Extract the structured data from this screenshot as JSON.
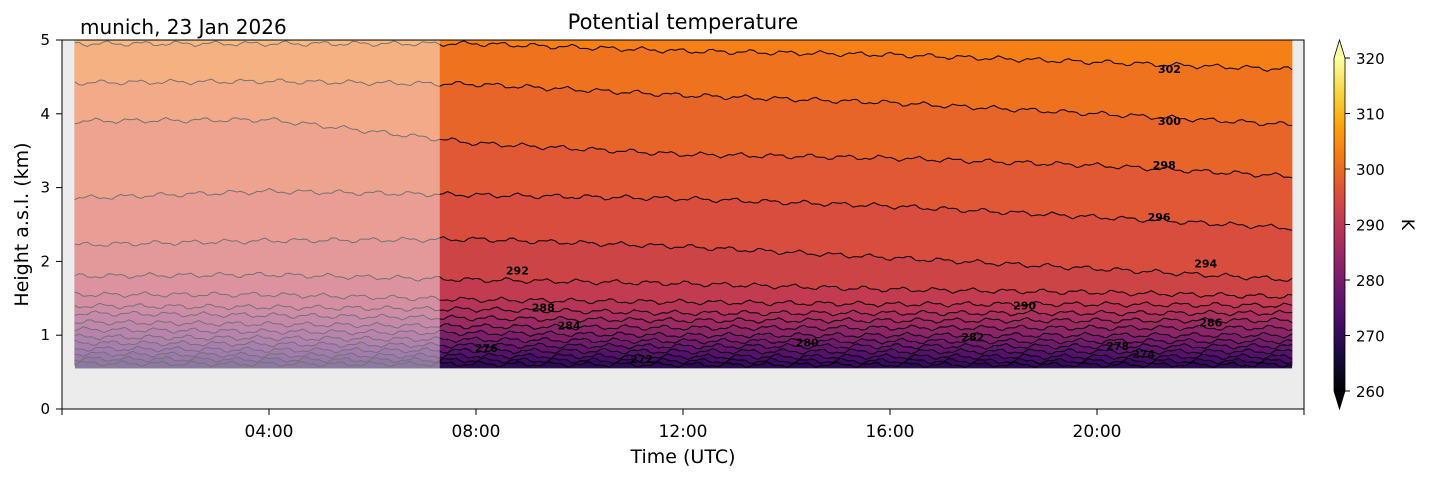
{
  "chart_data": {
    "type": "heatmap",
    "title": "Potential temperature",
    "location_label": "munich, 23 Jan 2026",
    "xlabel": "Time (UTC)",
    "ylabel": "Height a.s.l. (km)",
    "xlim_hours": [
      0,
      24
    ],
    "ylim_km": [
      0,
      5
    ],
    "x_tick_labels": [
      "04:00",
      "08:00",
      "12:00",
      "16:00",
      "20:00"
    ],
    "x_tick_hours": [
      4,
      8,
      12,
      16,
      20
    ],
    "y_ticks": [
      0,
      1,
      2,
      3,
      4,
      5
    ],
    "colorbar": {
      "label": "K",
      "min": 260,
      "max": 320,
      "ticks": [
        260,
        270,
        280,
        290,
        300,
        310,
        320
      ],
      "colormap": "inferno",
      "extend": "both"
    },
    "data_bottom_km": 0.55,
    "faded_until_hours": 7.3,
    "data_end_hours": 23.8,
    "missing_color": "#ececec",
    "contour_color": "#000000",
    "contour_label_values": [
      302,
      300,
      298,
      296,
      294,
      292,
      290,
      288,
      286,
      284,
      282,
      280,
      278,
      276,
      274,
      272
    ],
    "contour_levels": [
      {
        "theta": 302,
        "heights": [
          [
            0,
            4.95
          ],
          [
            4,
            4.95
          ],
          [
            8,
            4.95
          ],
          [
            12,
            4.85
          ],
          [
            16,
            4.8
          ],
          [
            20,
            4.7
          ],
          [
            23.8,
            4.6
          ]
        ]
      },
      {
        "theta": 300,
        "heights": [
          [
            0,
            4.42
          ],
          [
            4,
            4.44
          ],
          [
            8,
            4.4
          ],
          [
            12,
            4.25
          ],
          [
            16,
            4.15
          ],
          [
            20,
            4.0
          ],
          [
            23.8,
            3.85
          ]
        ]
      },
      {
        "theta": 298,
        "heights": [
          [
            0,
            3.9
          ],
          [
            4,
            3.92
          ],
          [
            8,
            3.6
          ],
          [
            12,
            3.45
          ],
          [
            16,
            3.4
          ],
          [
            20,
            3.3
          ],
          [
            23.8,
            3.15
          ]
        ]
      },
      {
        "theta": 296,
        "heights": [
          [
            0,
            2.85
          ],
          [
            4,
            2.95
          ],
          [
            8,
            2.9
          ],
          [
            12,
            2.85
          ],
          [
            16,
            2.75
          ],
          [
            20,
            2.6
          ],
          [
            23.8,
            2.45
          ]
        ]
      },
      {
        "theta": 294,
        "heights": [
          [
            0,
            2.22
          ],
          [
            4,
            2.28
          ],
          [
            8,
            2.3
          ],
          [
            12,
            2.2
          ],
          [
            16,
            2.05
          ],
          [
            20,
            1.9
          ],
          [
            23.8,
            1.75
          ]
        ]
      },
      {
        "theta": 292,
        "heights": [
          [
            0,
            1.8
          ],
          [
            4,
            1.82
          ],
          [
            8,
            1.75
          ],
          [
            12,
            1.7
          ],
          [
            16,
            1.62
          ],
          [
            20,
            1.58
          ],
          [
            23.8,
            1.52
          ]
        ]
      },
      {
        "theta": 290,
        "heights": [
          [
            0,
            1.55
          ],
          [
            4,
            1.55
          ],
          [
            8,
            1.48
          ],
          [
            12,
            1.45
          ],
          [
            16,
            1.42
          ],
          [
            20,
            1.42
          ],
          [
            23.8,
            1.4
          ]
        ]
      },
      {
        "theta": 288,
        "heights": [
          [
            0,
            1.4
          ],
          [
            4,
            1.38
          ],
          [
            8,
            1.35
          ],
          [
            12,
            1.3
          ],
          [
            16,
            1.3
          ],
          [
            20,
            1.3
          ],
          [
            23.8,
            1.3
          ]
        ]
      },
      {
        "theta": 286,
        "heights": [
          [
            0,
            1.3
          ],
          [
            4,
            1.27
          ],
          [
            8,
            1.23
          ],
          [
            12,
            1.2
          ],
          [
            16,
            1.2
          ],
          [
            20,
            1.2
          ],
          [
            23.8,
            1.2
          ]
        ]
      },
      {
        "theta": 284,
        "heights": [
          [
            0,
            1.18
          ],
          [
            4,
            1.15
          ],
          [
            8,
            1.12
          ],
          [
            12,
            1.1
          ],
          [
            16,
            1.1
          ],
          [
            20,
            1.1
          ],
          [
            23.8,
            1.1
          ]
        ]
      },
      {
        "theta": 282,
        "heights": [
          [
            0,
            1.08
          ],
          [
            4,
            1.05
          ],
          [
            8,
            1.03
          ],
          [
            12,
            1.0
          ],
          [
            16,
            1.0
          ],
          [
            20,
            1.0
          ],
          [
            23.8,
            1.0
          ]
        ]
      },
      {
        "theta": 280,
        "heights": [
          [
            0,
            0.98
          ],
          [
            4,
            0.96
          ],
          [
            8,
            0.94
          ],
          [
            12,
            0.92
          ],
          [
            16,
            0.92
          ],
          [
            20,
            0.92
          ],
          [
            23.8,
            0.92
          ]
        ]
      },
      {
        "theta": 278,
        "heights": [
          [
            0,
            0.9
          ],
          [
            4,
            0.88
          ],
          [
            8,
            0.86
          ],
          [
            12,
            0.85
          ],
          [
            16,
            0.85
          ],
          [
            20,
            0.85
          ],
          [
            23.8,
            0.85
          ]
        ]
      },
      {
        "theta": 276,
        "heights": [
          [
            0,
            0.82
          ],
          [
            4,
            0.8
          ],
          [
            8,
            0.79
          ],
          [
            12,
            0.78
          ],
          [
            16,
            0.78
          ],
          [
            20,
            0.78
          ],
          [
            23.8,
            0.78
          ]
        ]
      },
      {
        "theta": 274,
        "heights": [
          [
            0,
            0.75
          ],
          [
            4,
            0.73
          ],
          [
            8,
            0.72
          ],
          [
            12,
            0.71
          ],
          [
            16,
            0.71
          ],
          [
            20,
            0.71
          ],
          [
            23.8,
            0.71
          ]
        ]
      },
      {
        "theta": 272,
        "heights": [
          [
            0,
            0.68
          ],
          [
            4,
            0.67
          ],
          [
            8,
            0.66
          ],
          [
            12,
            0.65
          ],
          [
            16,
            0.65
          ],
          [
            20,
            0.65
          ],
          [
            23.8,
            0.65
          ]
        ]
      },
      {
        "theta": 270,
        "heights": [
          [
            0,
            0.62
          ],
          [
            4,
            0.61
          ],
          [
            8,
            0.61
          ],
          [
            12,
            0.6
          ],
          [
            16,
            0.6
          ],
          [
            20,
            0.6
          ],
          [
            23.8,
            0.6
          ]
        ]
      }
    ],
    "contour_labels": [
      {
        "text": "302",
        "x_hours": 21.4,
        "y_km": 4.55
      },
      {
        "text": "300",
        "x_hours": 21.4,
        "y_km": 3.85
      },
      {
        "text": "298",
        "x_hours": 21.3,
        "y_km": 3.25
      },
      {
        "text": "296",
        "x_hours": 21.2,
        "y_km": 2.55
      },
      {
        "text": "294",
        "x_hours": 22.1,
        "y_km": 1.92
      },
      {
        "text": "292",
        "x_hours": 8.8,
        "y_km": 1.82
      },
      {
        "text": "290",
        "x_hours": 18.6,
        "y_km": 1.35
      },
      {
        "text": "288",
        "x_hours": 9.3,
        "y_km": 1.32
      },
      {
        "text": "286",
        "x_hours": 22.2,
        "y_km": 1.12
      },
      {
        "text": "284",
        "x_hours": 9.8,
        "y_km": 1.08
      },
      {
        "text": "282",
        "x_hours": 17.6,
        "y_km": 0.92
      },
      {
        "text": "280",
        "x_hours": 14.4,
        "y_km": 0.85
      },
      {
        "text": "278",
        "x_hours": 20.4,
        "y_km": 0.8
      },
      {
        "text": "276",
        "x_hours": 8.2,
        "y_km": 0.77
      },
      {
        "text": "274",
        "x_hours": 20.9,
        "y_km": 0.69
      },
      {
        "text": "272",
        "x_hours": 11.2,
        "y_km": 0.62
      }
    ]
  }
}
